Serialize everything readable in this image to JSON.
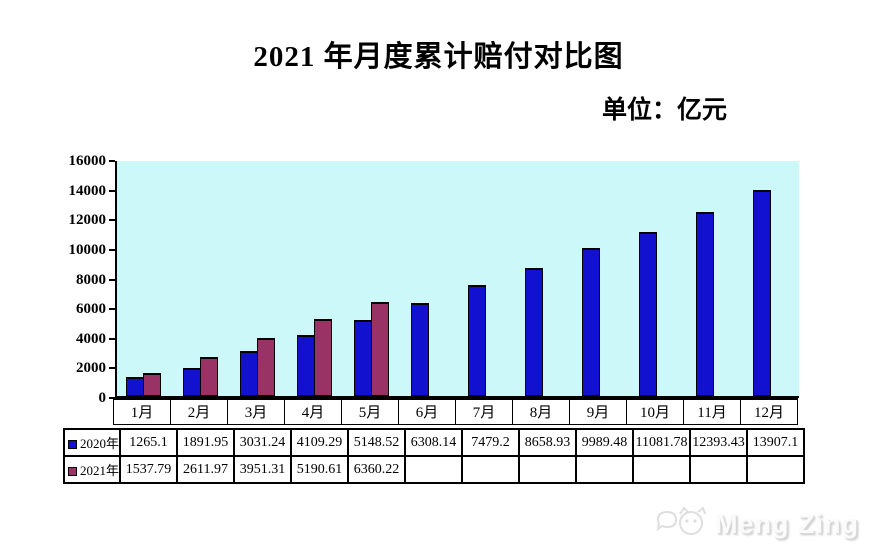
{
  "title": "2021 年月度累计赔付对比图",
  "unit_label": "单位：亿元",
  "watermark": {
    "text": "Meng Zing",
    "icon": "cat-face-icon"
  },
  "colors": {
    "series_2020": "#1111CF",
    "series_2021": "#993366",
    "plot_background": "#CCF8FA",
    "axis": "#000000",
    "table_border": "#000000"
  },
  "chart_data": {
    "type": "bar",
    "title": "2021 年月度累计赔付对比图",
    "unit": "亿元",
    "categories": [
      "1月",
      "2月",
      "3月",
      "4月",
      "5月",
      "6月",
      "7月",
      "8月",
      "9月",
      "10月",
      "11月",
      "12月"
    ],
    "series": [
      {
        "name": "2020年",
        "color": "#1111CF",
        "values": [
          1265.1,
          1891.95,
          3031.24,
          4109.29,
          5148.52,
          6308.14,
          7479.2,
          8658.93,
          9989.48,
          11081.78,
          12393.43,
          13907.1
        ],
        "labels": [
          "1265.1",
          "1891.95",
          "3031.24",
          "4109.29",
          "5148.52",
          "6308.14",
          "7479.2",
          "8658.93",
          "9989.48",
          "11081.78",
          "12393.43",
          "13907.1"
        ]
      },
      {
        "name": "2021年",
        "color": "#993366",
        "values": [
          1537.79,
          2611.97,
          3951.31,
          5190.61,
          6360.22,
          null,
          null,
          null,
          null,
          null,
          null,
          null
        ],
        "labels": [
          "1537.79",
          "2611.97",
          "3951.31",
          "5190.61",
          "6360.22",
          "",
          "",
          "",
          "",
          "",
          "",
          ""
        ]
      }
    ],
    "ylim": [
      0,
      16000
    ],
    "ytick_step": 2000,
    "ytick_labels": [
      "0",
      "2000",
      "4000",
      "6000",
      "8000",
      "10000",
      "12000",
      "14000",
      "16000"
    ],
    "grid": false,
    "plot_background": "#CCF8FA",
    "legend_position": "table-left"
  }
}
